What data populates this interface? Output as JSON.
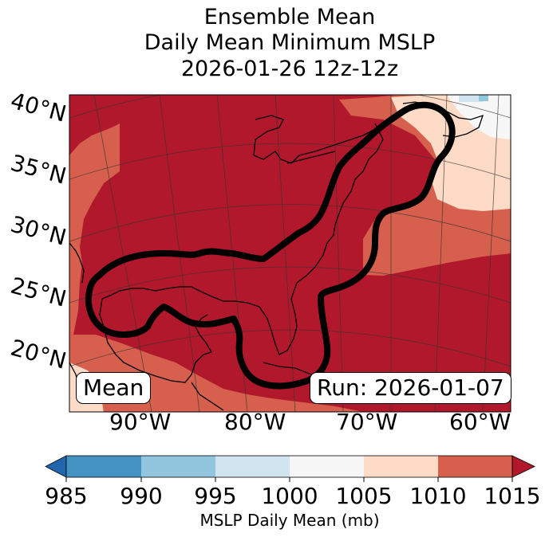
{
  "title": {
    "line1": "Ensemble Mean",
    "line2": "Daily Mean Minimum MSLP",
    "line3": "2026-01-26 12z-12z"
  },
  "map": {
    "lat_labels": [
      "40°N",
      "35°N",
      "30°N",
      "25°N",
      "20°N"
    ],
    "lon_labels": [
      "90°W",
      "80°W",
      "70°W",
      "60°W"
    ],
    "mean_box": "Mean",
    "run_box": "Run: 2026-01-07",
    "region": "Gulf of Mexico and U.S. East Coast",
    "contour": "outlined region of ensemble mean minimum MSLP"
  },
  "colorbar": {
    "ticks": [
      "985",
      "990",
      "995",
      "1000",
      "1005",
      "1010",
      "1015"
    ],
    "label": "MSLP Daily Mean (mb)",
    "colors": {
      "under": "#2166ac",
      "b985_990": "#4393c3",
      "b990_995": "#92c5de",
      "b995_1000": "#d1e5f0",
      "b1000_1005": "#f7f7f7",
      "b1005_1010": "#fddbc7",
      "b1010_1015": "#d6604d",
      "over": "#b2182b"
    }
  },
  "chart_data": {
    "type": "heatmap",
    "title": "Ensemble Mean Daily Mean Minimum MSLP 2026-01-26 12z-12z",
    "value_units": "mb",
    "levels": [
      985,
      990,
      995,
      1000,
      1005,
      1010,
      1015
    ],
    "extend": "both",
    "lat_range": [
      15,
      42
    ],
    "lon_range": [
      -97,
      -58
    ],
    "lat_ticks": [
      40,
      35,
      30,
      25,
      20
    ],
    "lon_ticks": [
      -90,
      -80,
      -70,
      -60
    ],
    "dominant_band": ">1015",
    "notes": "Most of map >1015 mb; 1010-1015 mb along southern edge, western Mexico and NE Atlantic; 1005-1010 mb near Nova Scotia/Newfoundland and SW corner"
  }
}
